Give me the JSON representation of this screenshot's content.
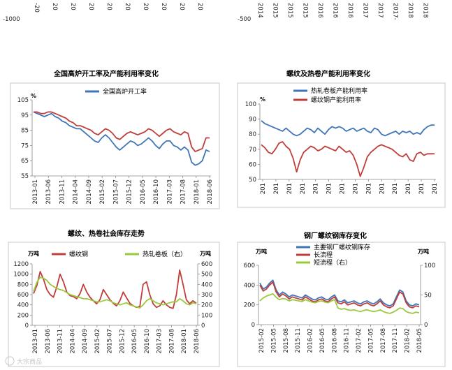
{
  "top_fragments": {
    "left_ylabel": "-1000",
    "left_ticks": [
      "-20",
      "20",
      "20",
      "20",
      "20",
      "20",
      "20",
      "20",
      "20",
      "20"
    ],
    "right_ylabel": "-500",
    "right_ticks": [
      "2014",
      "2015",
      "2015",
      "2015",
      "2016",
      "2016",
      "2016",
      "2017",
      "2017",
      "2017-",
      "2018",
      "2018"
    ]
  },
  "watermark": "大宗商品",
  "chart_data": [
    {
      "id": "blast",
      "type": "line",
      "title": "全国高炉开工率及产能利用率变化",
      "unit_left": "%",
      "ylim": [
        55,
        105
      ],
      "yticks": [
        55,
        65,
        75,
        85,
        95,
        105
      ],
      "x_tick_labels": [
        "2013-01",
        "2013-06",
        "2013-11",
        "2014-04",
        "2014-09",
        "2015-02",
        "2015-07",
        "2015-12",
        "2016-05",
        "2016-10",
        "2017-03",
        "2017-08",
        "2018-01",
        "2018-06"
      ],
      "legend": [
        "全国高炉开工率"
      ],
      "series": [
        {
          "name": "全国高炉开工率",
          "color": "#3F76B7",
          "axis": "left",
          "values": [
            97,
            96,
            95,
            94,
            95,
            96,
            94,
            93,
            91,
            90,
            88,
            87,
            86,
            86,
            84,
            82,
            80,
            78,
            77,
            80,
            82,
            80,
            77,
            74,
            72,
            74,
            76,
            78,
            77,
            75,
            76,
            78,
            80,
            78,
            75,
            73,
            76,
            78,
            78,
            75,
            74,
            72,
            74,
            72,
            64,
            62,
            63,
            65,
            72,
            71
          ]
        },
        {
          "name": "产能利用率",
          "color": "#C03E3A",
          "axis": "left",
          "values": [
            97,
            97,
            96,
            96,
            97,
            97,
            96,
            95,
            94,
            93,
            91,
            90,
            88,
            88,
            87,
            86,
            85,
            83,
            82,
            84,
            86,
            85,
            83,
            80,
            79,
            81,
            83,
            84,
            83,
            82,
            83,
            84,
            86,
            85,
            83,
            81,
            83,
            85,
            86,
            84,
            83,
            82,
            84,
            83,
            74,
            71,
            72,
            73,
            80,
            80
          ]
        }
      ]
    },
    {
      "id": "util",
      "type": "line",
      "title": "螺纹及热卷产能利用率变化",
      "unit_left": "%",
      "ylim": [
        50,
        100
      ],
      "yticks": [
        50,
        60,
        70,
        80,
        90,
        100
      ],
      "x_tick_labels": [
        "201",
        "201",
        "201",
        "201",
        "201",
        "201",
        "201",
        "201",
        "201",
        "201",
        "201",
        "201",
        "201",
        "201"
      ],
      "legend": [
        "热轧卷板产能利用率",
        "螺纹钢产能利用率"
      ],
      "series": [
        {
          "name": "热轧卷板产能利用率",
          "color": "#3F76B7",
          "axis": "left",
          "values": [
            89,
            87,
            86,
            85,
            84,
            83,
            82,
            84,
            82,
            80,
            79,
            80,
            82,
            84,
            83,
            81,
            84,
            82,
            80,
            83,
            85,
            84,
            85,
            84,
            82,
            83,
            84,
            82,
            83,
            84,
            82,
            81,
            84,
            83,
            80,
            79,
            80,
            81,
            82,
            80,
            82,
            81,
            82,
            80,
            81,
            80,
            83,
            85,
            86,
            86
          ]
        },
        {
          "name": "螺纹钢产能利用率",
          "color": "#C03E3A",
          "axis": "left",
          "values": [
            73,
            71,
            68,
            67,
            70,
            74,
            75,
            72,
            70,
            64,
            55,
            63,
            68,
            70,
            72,
            71,
            69,
            70,
            72,
            71,
            70,
            69,
            72,
            70,
            68,
            69,
            66,
            60,
            52,
            58,
            65,
            68,
            70,
            72,
            73,
            72,
            71,
            70,
            68,
            66,
            65,
            67,
            63,
            62,
            67,
            68,
            66,
            67,
            67,
            67
          ]
        }
      ]
    },
    {
      "id": "social",
      "type": "line",
      "title": "螺纹、热卷社会库存走势",
      "unit_left": "万吨",
      "unit_right": "万吨",
      "ylim": [
        0,
        1200
      ],
      "yticks": [
        0,
        200,
        400,
        600,
        800,
        1000,
        1200
      ],
      "y2lim": [
        0,
        600
      ],
      "y2ticks": [
        0,
        100,
        200,
        300,
        400,
        500,
        600
      ],
      "x_tick_labels": [
        "2013-01",
        "2013-06",
        "2013-11",
        "2014-04",
        "2014-09",
        "2015-02",
        "2015-07",
        "2015-12",
        "2016-05",
        "2016-10",
        "2017-03",
        "2017-08",
        "2018-01",
        "2018-06"
      ],
      "legend": [
        "螺纹钢",
        "热轧卷板（右）"
      ],
      "series": [
        {
          "name": "螺纹钢",
          "color": "#C03E3A",
          "axis": "left",
          "values": [
            620,
            780,
            1050,
            900,
            700,
            600,
            550,
            750,
            1000,
            850,
            650,
            580,
            560,
            520,
            620,
            800,
            650,
            550,
            480,
            420,
            500,
            700,
            600,
            500,
            430,
            380,
            480,
            650,
            540,
            430,
            380,
            350,
            370,
            800,
            850,
            600,
            420,
            350,
            380,
            480,
            400,
            350,
            330,
            600,
            1080,
            800,
            500,
            420,
            480,
            430
          ]
        },
        {
          "name": "热轧卷板（右）",
          "color": "#9ACA3C",
          "axis": "right",
          "values": [
            330,
            420,
            470,
            460,
            440,
            400,
            380,
            360,
            350,
            340,
            320,
            300,
            290,
            280,
            270,
            260,
            260,
            250,
            240,
            230,
            230,
            240,
            250,
            240,
            220,
            210,
            200,
            210,
            220,
            200,
            190,
            180,
            170,
            200,
            240,
            260,
            240,
            220,
            210,
            200,
            210,
            220,
            230,
            230,
            260,
            240,
            210,
            200,
            220,
            210
          ]
        }
      ]
    },
    {
      "id": "mill",
      "type": "line",
      "title": "钢厂螺纹钢库存变化",
      "unit_left": "万吨",
      "unit_right": "万吨",
      "ylim": [
        0,
        600
      ],
      "yticks": [
        0,
        200,
        400,
        600
      ],
      "y2lim": [
        0,
        100
      ],
      "y2ticks": [
        0,
        50,
        100
      ],
      "x_tick_labels": [
        "2015-02",
        "2015-05",
        "2015-08",
        "2015-11",
        "2016-02",
        "2016-05",
        "2016-08",
        "2016-11",
        "2017-02",
        "2017-05",
        "2017-08",
        "2017-11",
        "2018-02",
        "2018-05"
      ],
      "legend": [
        "主要钢厂螺纹钢库存",
        "长流程",
        "短流程（右）"
      ],
      "series": [
        {
          "name": "主要钢厂螺纹钢库存",
          "color": "#3F76B7",
          "axis": "left",
          "values": [
            420,
            360,
            380,
            420,
            450,
            350,
            300,
            330,
            310,
            280,
            300,
            290,
            280,
            270,
            300,
            280,
            260,
            250,
            270,
            280,
            260,
            250,
            280,
            300,
            240,
            230,
            250,
            220,
            230,
            240,
            220,
            210,
            230,
            240,
            220,
            210,
            230,
            260,
            220,
            200,
            190,
            210,
            280,
            350,
            330,
            240,
            200,
            190,
            210,
            200
          ]
        },
        {
          "name": "长流程",
          "color": "#C03E3A",
          "axis": "left",
          "values": [
            400,
            340,
            360,
            400,
            430,
            330,
            280,
            310,
            290,
            260,
            280,
            270,
            260,
            250,
            280,
            260,
            240,
            230,
            250,
            260,
            240,
            230,
            260,
            280,
            220,
            210,
            230,
            200,
            210,
            220,
            200,
            190,
            210,
            220,
            200,
            190,
            210,
            240,
            200,
            180,
            170,
            190,
            260,
            330,
            310,
            220,
            180,
            170,
            190,
            180
          ]
        },
        {
          "name": "短流程（右）",
          "color": "#9ACA3C",
          "axis": "right",
          "values": [
            40,
            45,
            48,
            50,
            52,
            46,
            42,
            44,
            43,
            40,
            42,
            41,
            40,
            39,
            42,
            40,
            38,
            37,
            39,
            40,
            38,
            37,
            40,
            42,
            28,
            26,
            27,
            25,
            24,
            25,
            23,
            22,
            24,
            25,
            23,
            22,
            23,
            25,
            22,
            20,
            19,
            21,
            24,
            28,
            27,
            22,
            20,
            19,
            21,
            20
          ]
        }
      ]
    }
  ]
}
